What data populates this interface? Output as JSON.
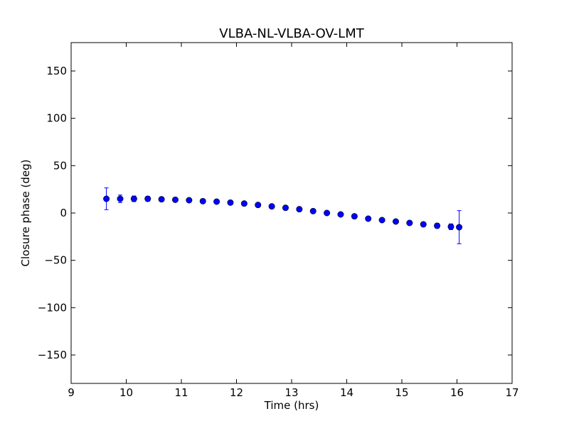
{
  "chart_data": {
    "type": "scatter",
    "title": "VLBA-NL-VLBA-OV-LMT",
    "xlabel": "Time (hrs)",
    "ylabel": "Closure phase (deg)",
    "xlim": [
      9,
      17
    ],
    "ylim": [
      -180,
      180
    ],
    "xticks": [
      9,
      10,
      11,
      12,
      13,
      14,
      15,
      16,
      17
    ],
    "xtick_labels": [
      "9",
      "10",
      "11",
      "12",
      "13",
      "14",
      "15",
      "16",
      "17"
    ],
    "yticks": [
      -150,
      -100,
      -50,
      0,
      50,
      100,
      150
    ],
    "ytick_labels": [
      "−150",
      "−100",
      "−50",
      "0",
      "50",
      "100",
      "150"
    ],
    "grid": false,
    "legend": "none",
    "marker_color": "#0000ff",
    "errorbar_color": "#0000ff",
    "points": [
      {
        "x": 9.64,
        "y": 15.0,
        "err": 11.5
      },
      {
        "x": 9.89,
        "y": 15.0,
        "err": 4.0
      },
      {
        "x": 10.14,
        "y": 15.0,
        "err": 3.0
      },
      {
        "x": 10.39,
        "y": 15.0,
        "err": 2.5
      },
      {
        "x": 10.64,
        "y": 14.5,
        "err": 2.0
      },
      {
        "x": 10.89,
        "y": 14.0,
        "err": 2.0
      },
      {
        "x": 11.14,
        "y": 13.5,
        "err": 1.8
      },
      {
        "x": 11.39,
        "y": 12.5,
        "err": 1.8
      },
      {
        "x": 11.64,
        "y": 12.0,
        "err": 1.8
      },
      {
        "x": 11.89,
        "y": 11.0,
        "err": 1.8
      },
      {
        "x": 12.14,
        "y": 10.0,
        "err": 1.8
      },
      {
        "x": 12.39,
        "y": 8.5,
        "err": 1.8
      },
      {
        "x": 12.64,
        "y": 7.0,
        "err": 1.8
      },
      {
        "x": 12.89,
        "y": 5.5,
        "err": 1.8
      },
      {
        "x": 13.14,
        "y": 4.0,
        "err": 1.8
      },
      {
        "x": 13.39,
        "y": 2.0,
        "err": 1.8
      },
      {
        "x": 13.64,
        "y": 0.0,
        "err": 1.8
      },
      {
        "x": 13.89,
        "y": -1.5,
        "err": 1.8
      },
      {
        "x": 14.14,
        "y": -3.5,
        "err": 1.8
      },
      {
        "x": 14.39,
        "y": -6.0,
        "err": 1.8
      },
      {
        "x": 14.64,
        "y": -7.5,
        "err": 1.8
      },
      {
        "x": 14.89,
        "y": -9.0,
        "err": 1.8
      },
      {
        "x": 15.14,
        "y": -10.5,
        "err": 1.8
      },
      {
        "x": 15.39,
        "y": -12.0,
        "err": 2.0
      },
      {
        "x": 15.64,
        "y": -13.5,
        "err": 2.5
      },
      {
        "x": 15.89,
        "y": -14.5,
        "err": 3.0
      },
      {
        "x": 16.04,
        "y": -15.0,
        "err": 17.5
      }
    ]
  }
}
